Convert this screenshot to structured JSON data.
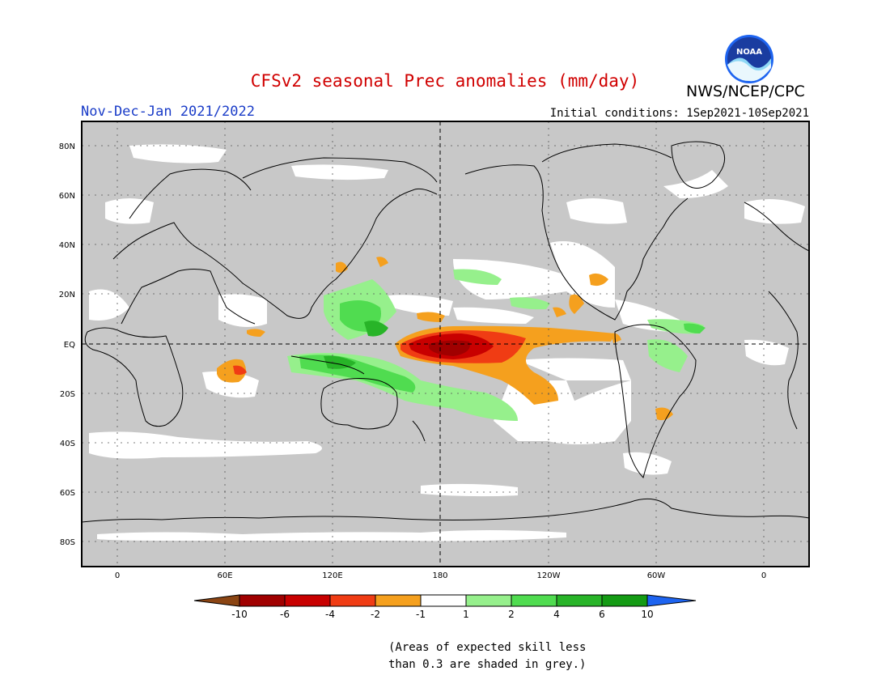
{
  "title": "CFSv2 seasonal Prec anomalies (mm/day)",
  "organization": "NWS/NCEP/CPC",
  "logo_text": "NOAA",
  "period": "Nov-Dec-Jan 2021/2022",
  "initial_conditions": "Initial conditions: 1Sep2021-10Sep2021",
  "lat_labels": [
    "80N",
    "60N",
    "40N",
    "20N",
    "EQ",
    "20S",
    "40S",
    "60S",
    "80S"
  ],
  "lon_labels": [
    "0",
    "60E",
    "120E",
    "180",
    "120W",
    "60W",
    "0"
  ],
  "colorbar": {
    "ticks": [
      "-10",
      "-6",
      "-4",
      "-2",
      "-1",
      "1",
      "2",
      "4",
      "6",
      "10"
    ],
    "colors": [
      "#8b4513",
      "#a00000",
      "#c80000",
      "#f03c14",
      "#f5a01e",
      "#ffffff",
      "#96f08c",
      "#50dc50",
      "#28b428",
      "#149b14",
      "#1e64f0"
    ]
  },
  "note_line1": "(Areas of expected skill less",
  "note_line2": "than 0.3 are shaded in grey.)",
  "colors": {
    "grey_skill": "#c8c8c8",
    "title": "#d00000",
    "period": "#1a3cc8"
  }
}
